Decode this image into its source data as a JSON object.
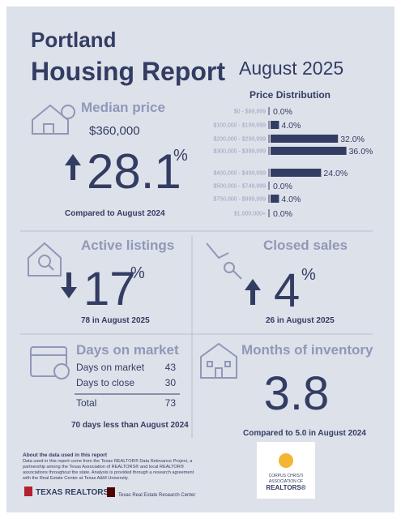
{
  "header": {
    "city": "Portland",
    "title": "Housing Report",
    "period": "August 2025"
  },
  "median_price": {
    "label": "Median price",
    "value": "$360,000",
    "change": "28.1",
    "unit": "%",
    "note": "Compared to August 2024"
  },
  "price_distribution": {
    "title": "Price Distribution",
    "categories": [
      "$0 - $99,999",
      "$100,000 - $199,999",
      "$200,000 - $299,999",
      "$300,000 - $399,999",
      "$400,000 - $499,999",
      "$500,000 - $749,999",
      "$750,000 - $999,999",
      "$1,000,000+"
    ],
    "values": [
      0,
      4,
      32,
      36,
      24,
      0,
      4,
      0
    ],
    "value_labels": [
      "0.0%",
      "4.0%",
      "32.0%",
      "36.0%",
      "24.0%",
      "0.0%",
      "4.0%",
      "0.0%"
    ]
  },
  "active_listings": {
    "label": "Active listings",
    "change": "17",
    "unit": "%",
    "note": "78 in August 2025"
  },
  "closed_sales": {
    "label": "Closed sales",
    "change": "4",
    "unit": "%",
    "note": "26 in August 2025"
  },
  "days_on_market": {
    "label": "Days on market",
    "rows": [
      [
        "Days on market",
        43
      ],
      [
        "Days to close",
        30
      ]
    ],
    "total": [
      "Total",
      73
    ],
    "note": "70 days less than August 2024"
  },
  "months_of_inventory": {
    "label": "Months of inventory",
    "value": "3.8",
    "note": "Compared to 5.0 in August 2024"
  },
  "footer": {
    "heading": "About the data used in this report",
    "lines": [
      "Data used in this report come from the Texas REALTOR® Data Relevance Project, a",
      "partnership among the Texas Association of REALTORS® and local REALTOR®",
      "associations throughout the state. Analysis is provided through a research agreement",
      "with the Real Estate Center at Texas A&M University."
    ]
  },
  "logos": {
    "texas_realtors": "TEXAS REALTORS",
    "research_center": "Texas Real Estate Research Center",
    "corpus": [
      "CORPUS CHRISTI",
      "ASSOCIATION OF",
      "REALTORS®"
    ]
  }
}
